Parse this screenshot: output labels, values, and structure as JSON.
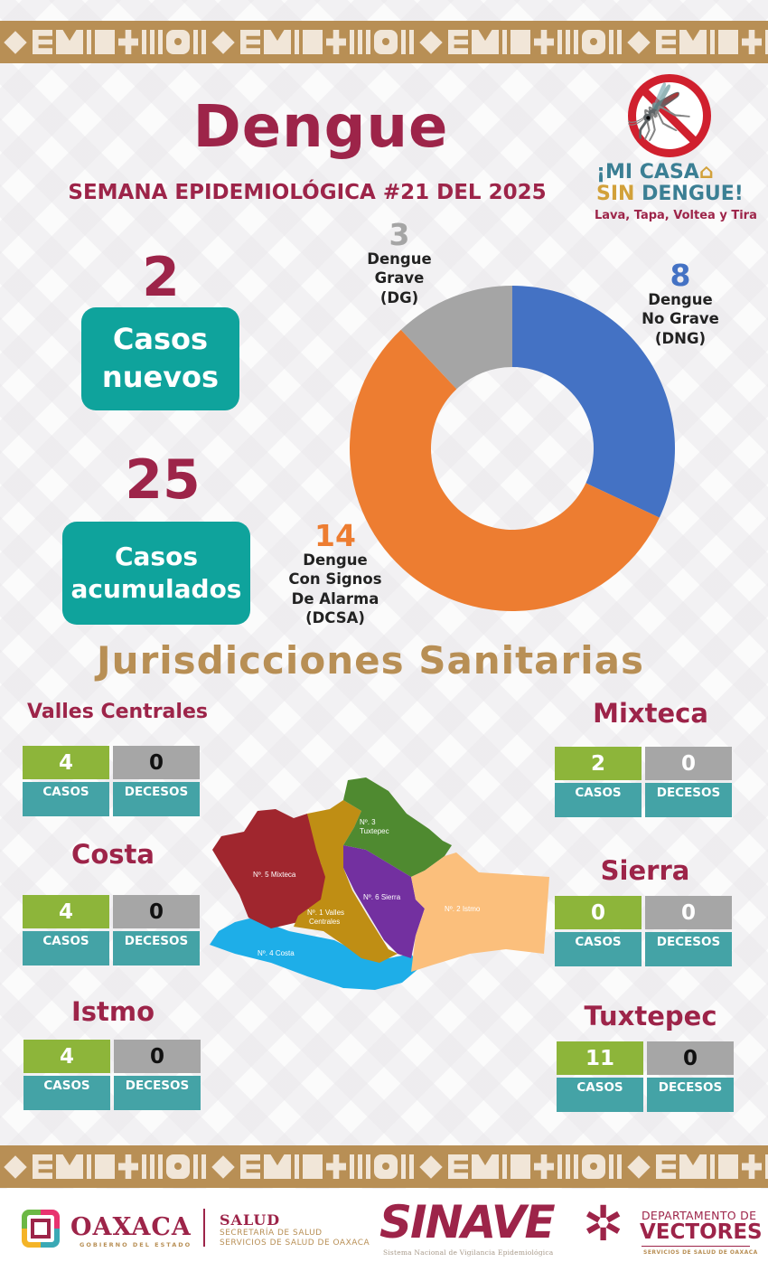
{
  "header": {
    "title": "Dengue",
    "subtitle": "SEMANA EPIDEMIOLÓGICA #21 DEL 2025"
  },
  "campaign": {
    "icon": "no-mosquito-icon",
    "line1": "¡MI CASA",
    "line2_a": "SIN",
    "line2_b": "DENGUE!",
    "tagline": "Lava, Tapa, Voltea y Tira"
  },
  "summary": {
    "new_cases": {
      "value": "2",
      "label_1": "Casos",
      "label_2": "nuevos"
    },
    "cumulative_cases": {
      "value": "25",
      "label_1": "Casos",
      "label_2": "acumulados"
    }
  },
  "colors": {
    "brand": "#9d2449",
    "gold": "#b88f55",
    "teal": "#0fa39c",
    "cases_green": "#8db53a",
    "deaths_gray": "#a6a6a6",
    "label_teal": "#44a3a6",
    "dng_blue": "#4472c4",
    "dcsa_orange": "#ed7d31",
    "dg_gray": "#a5a5a5"
  },
  "chart_data": {
    "type": "pie",
    "title": "Casos acumulados por clasificación",
    "donut": true,
    "start_angle": "12 o'clock, clockwise",
    "categories": [
      "Dengue No Grave (DNG)",
      "Dengue Con Signos De Alarma (DCSA)",
      "Dengue Grave (DG)"
    ],
    "values": [
      8,
      14,
      3
    ],
    "colors": [
      "#4472c4",
      "#ed7d31",
      "#a5a5a5"
    ],
    "total": 25,
    "labels": {
      "dng": {
        "value": "8",
        "line1": "Dengue",
        "line2": "No Grave",
        "line3": "(DNG)"
      },
      "dcsa": {
        "value": "14",
        "line1": "Dengue",
        "line2": "Con Signos",
        "line3": "De Alarma",
        "line4": "(DCSA)"
      },
      "dg": {
        "value": "3",
        "line1": "Dengue",
        "line2": "Grave",
        "line3": "(DG)"
      }
    }
  },
  "jurisdictions": {
    "title": "Jurisdicciones Sanitarias",
    "cases_label": "CASOS",
    "deaths_label": "DECESOS",
    "items": [
      {
        "name": "Valles Centrales",
        "cases": "4",
        "deaths": "0"
      },
      {
        "name": "Costa",
        "cases": "4",
        "deaths": "0"
      },
      {
        "name": "Istmo",
        "cases": "4",
        "deaths": "0"
      },
      {
        "name": "Mixteca",
        "cases": "2",
        "deaths": "0"
      },
      {
        "name": "Sierra",
        "cases": "0",
        "deaths": "0"
      },
      {
        "name": "Tuxtepec",
        "cases": "11",
        "deaths": "0"
      }
    ]
  },
  "map": {
    "regions": [
      {
        "label": "Nº. 5 Mixteca",
        "color": "#a0262e"
      },
      {
        "label_1": "Nº. 1 Valles",
        "label_2": "Centrales",
        "color": "#bf8e14"
      },
      {
        "label_1": "Nº. 3",
        "label_2": "Tuxtepec",
        "color": "#4f8a30"
      },
      {
        "label": "Nº. 6 Sierra",
        "color": "#7330a0"
      },
      {
        "label": "Nº. 2 Istmo",
        "color": "#fbbf7c"
      },
      {
        "label": "Nº. 4 Costa",
        "color": "#1eaee8"
      }
    ]
  },
  "footer": {
    "oaxaca": "OAXACA",
    "oaxaca_sub": "GOBIERNO DEL ESTADO",
    "salud": "SALUD",
    "salud_sub_1": "SECRETARÍA DE SALUD",
    "salud_sub_2": "SERVICIOS DE SALUD DE OAXACA",
    "sinave": "SINAVE",
    "sinave_sub": "Sistema Nacional de Vigilancia Epidemiológica",
    "vectores_1": "DEPARTAMENTO DE",
    "vectores_2": "VECTORES",
    "vectores_3": "SERVICIOS DE SALUD DE OAXACA"
  }
}
